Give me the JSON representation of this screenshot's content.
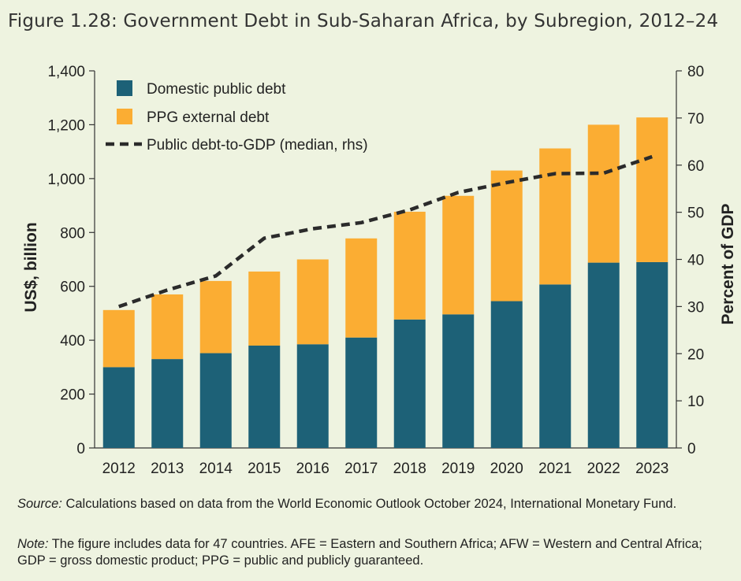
{
  "title": "Figure 1.28: Government Debt in Sub-Saharan Africa, by Subregion, 2012–24",
  "colors": {
    "domestic": "#1d6177",
    "external": "#fbad33",
    "line": "#2b2b2b",
    "background": "#eef3e0"
  },
  "chart_data": {
    "type": "bar",
    "stacked": true,
    "categories": [
      "2012",
      "2013",
      "2014",
      "2015",
      "2016",
      "2017",
      "2018",
      "2019",
      "2020",
      "2021",
      "2022",
      "2023"
    ],
    "series": [
      {
        "name": "Domestic public debt",
        "type": "bar",
        "axis": "left",
        "values": [
          300,
          330,
          352,
          380,
          385,
          410,
          477,
          496,
          545,
          607,
          688,
          690
        ]
      },
      {
        "name": "PPG external debt",
        "type": "bar",
        "axis": "left",
        "values": [
          212,
          240,
          268,
          275,
          315,
          368,
          400,
          440,
          485,
          505,
          512,
          537
        ]
      },
      {
        "name": "Public debt-to-GDP (median, rhs)",
        "type": "line",
        "axis": "right",
        "style": "dashed",
        "values": [
          30,
          33.5,
          36.5,
          44.5,
          46.5,
          47.8,
          50.5,
          54.2,
          56.3,
          58.2,
          58.3,
          61.8
        ]
      }
    ],
    "ylabel": "US$, billion",
    "ylim": [
      0,
      1400
    ],
    "yticks": [
      "0",
      "200",
      "400",
      "600",
      "800",
      "1,000",
      "1,200",
      "1,400"
    ],
    "y2label": "Percent of GDP",
    "y2lim": [
      0,
      80
    ],
    "y2ticks": [
      "0",
      "10",
      "20",
      "30",
      "40",
      "50",
      "60",
      "70",
      "80"
    ],
    "legend_position": "top-left"
  },
  "source": {
    "label": "Source:",
    "text": " Calculations based on data from the World Economic Outlook October 2024, International Monetary Fund."
  },
  "note": {
    "label": "Note:",
    "text": " The figure includes data for 47 countries. AFE = Eastern and Southern Africa; AFW = Western and Central Africa; GDP = gross domestic product; PPG = public and publicly guaranteed."
  }
}
